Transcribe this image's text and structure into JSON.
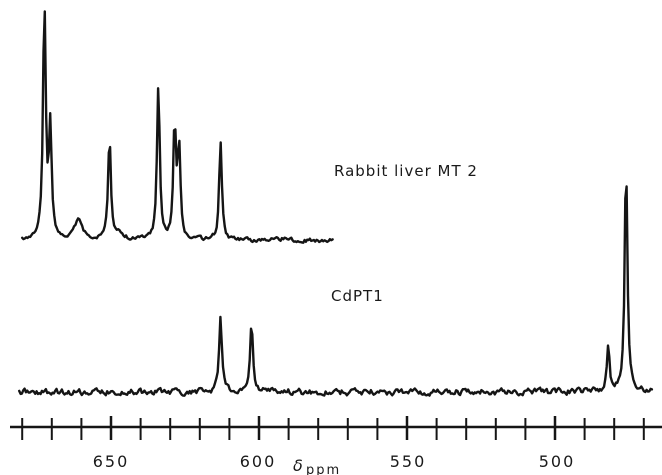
{
  "chart_data": {
    "type": "line",
    "xlabel": "δ",
    "xlabel_unit": "ppm",
    "x_axis_reversed": true,
    "xlim": [
      681,
      467
    ],
    "x_tick_labels": [
      "650",
      "600",
      "550",
      "500"
    ],
    "x_major_ticks": [
      650,
      600,
      550,
      500
    ],
    "x_minor_step": 10,
    "grid": false,
    "series": [
      {
        "name": "Rabbit liver MT 2",
        "x_range": [
          680,
          575
        ],
        "baseline": 0.04,
        "peaks": [
          {
            "x": 672.5,
            "height": 1.0
          },
          {
            "x": 670.5,
            "height": 0.46
          },
          {
            "x": 661,
            "height": 0.08
          },
          {
            "x": 650.5,
            "height": 0.44
          },
          {
            "x": 647,
            "height": 0.03
          },
          {
            "x": 634,
            "height": 0.66
          },
          {
            "x": 628.5,
            "height": 0.48
          },
          {
            "x": 627,
            "height": 0.38
          },
          {
            "x": 613,
            "height": 0.42
          },
          {
            "x": 591,
            "height": 0.015
          }
        ]
      },
      {
        "name": "CdPT1",
        "x_range": [
          681,
          467
        ],
        "baseline": 0.0,
        "peaks": [
          {
            "x": 613,
            "height": 0.78
          },
          {
            "x": 602.5,
            "height": 0.76
          },
          {
            "x": 482,
            "height": 0.48
          },
          {
            "x": 476,
            "height": 2.45
          }
        ]
      }
    ]
  }
}
